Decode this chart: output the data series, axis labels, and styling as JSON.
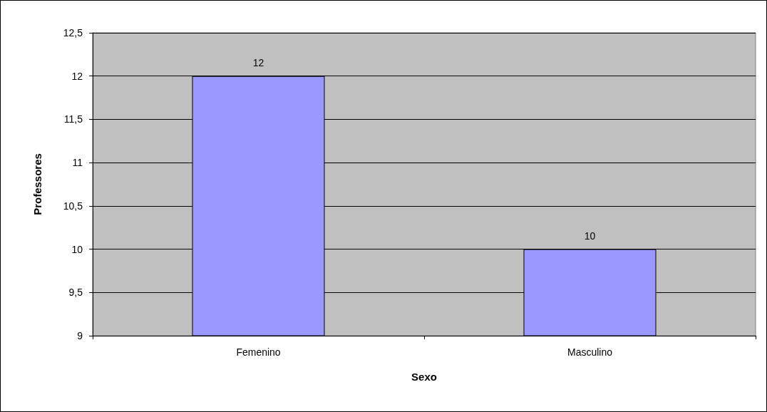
{
  "chart_data": {
    "type": "bar",
    "xlabel": "Sexo",
    "ylabel": "Professores",
    "categories": [
      "Femenino",
      "Masculino"
    ],
    "values": [
      12,
      10
    ],
    "color": "#9999ff",
    "data_labels": true,
    "grid": "y",
    "ylim": [
      9,
      12.5
    ],
    "yticks": [
      9,
      {
        "value": 9.5,
        "label": "9,5"
      },
      10,
      {
        "value": 10.5,
        "label": "10,5"
      },
      11,
      {
        "value": 11.5,
        "label": "11,5"
      },
      12,
      {
        "value": 12.5,
        "label": "12,5"
      }
    ]
  }
}
